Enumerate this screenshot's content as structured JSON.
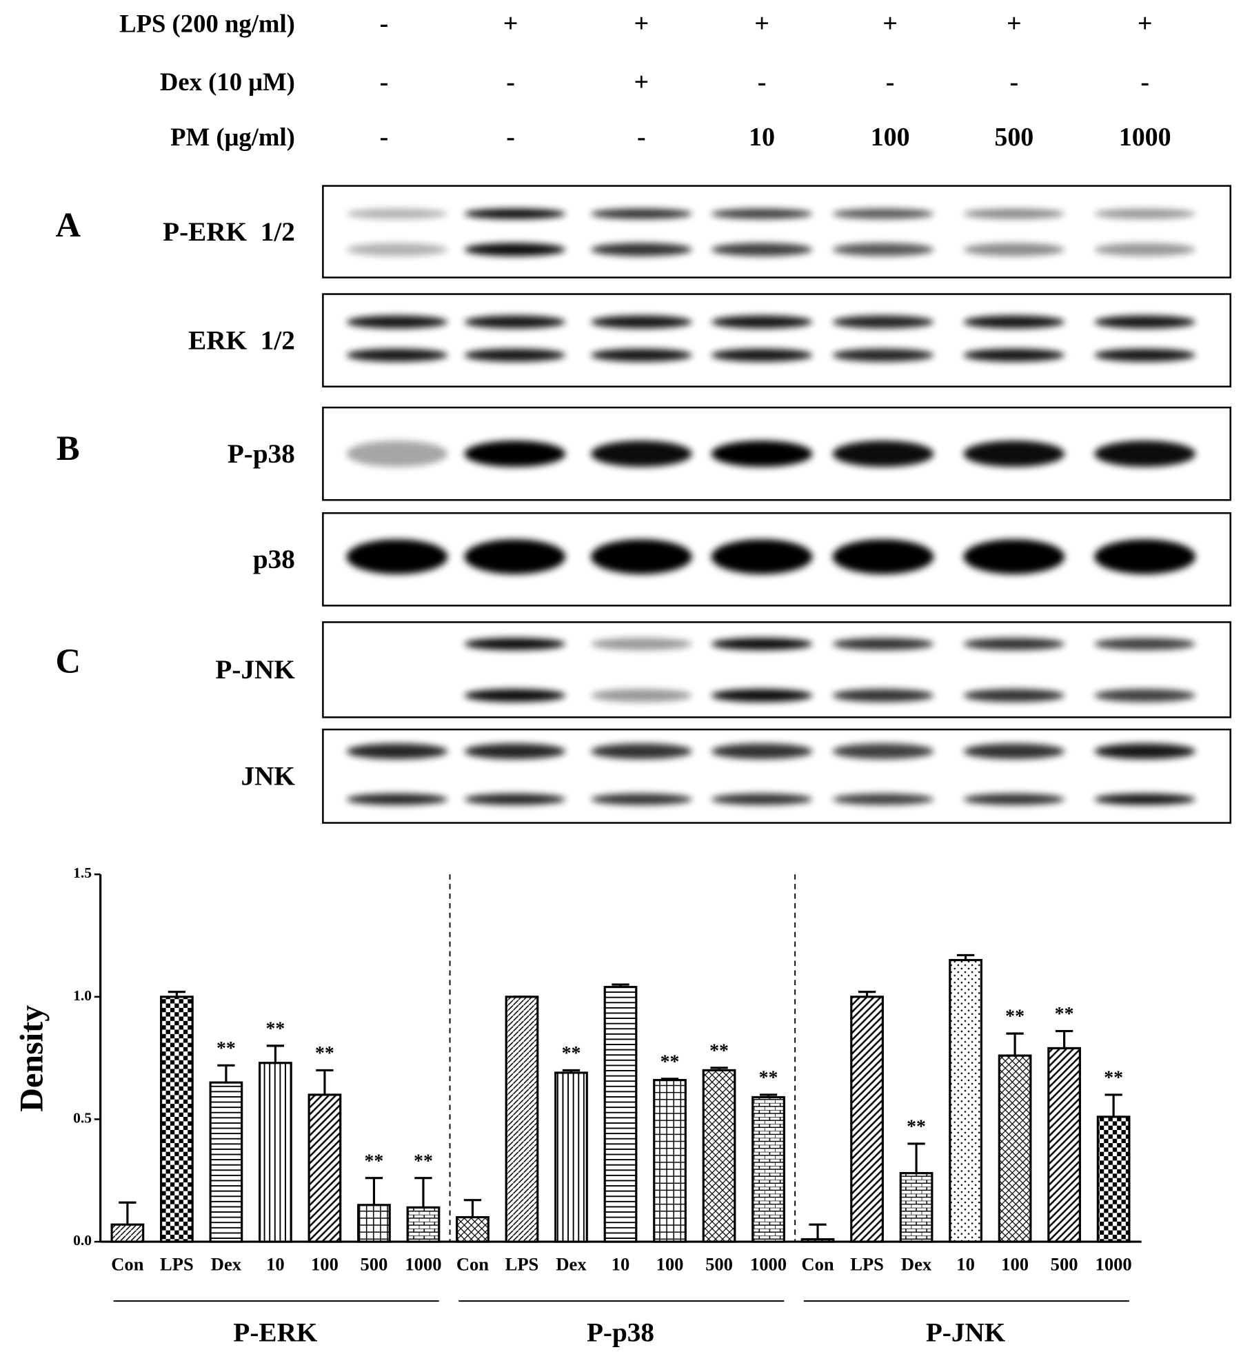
{
  "treatments": {
    "rows": [
      {
        "label": "LPS (200 ng/ml)",
        "cells": [
          "-",
          "+",
          "+",
          "+",
          "+",
          "+",
          "+"
        ]
      },
      {
        "label": "Dex (10 μM)",
        "cells": [
          "-",
          "-",
          "+",
          "-",
          "-",
          "-",
          "-"
        ]
      },
      {
        "label": "PM (μg/ml)",
        "cells": [
          "-",
          "-",
          "-",
          "10",
          "100",
          "500",
          "1000"
        ]
      }
    ]
  },
  "blots": [
    {
      "panel": "A",
      "label": "P-ERK  1/2"
    },
    {
      "label": "ERK  1/2"
    },
    {
      "panel": "B",
      "label": "P-p38"
    },
    {
      "label": "p38"
    },
    {
      "panel": "C",
      "label": "P-JNK"
    },
    {
      "label": "JNK"
    }
  ],
  "chart_data": {
    "type": "bar",
    "y_label": "Density",
    "ylim": [
      0,
      1.5
    ],
    "yticks": [
      {
        "value": 0,
        "label": "0.0"
      },
      {
        "value": 0.5,
        "label": "0.5"
      },
      {
        "value": 1,
        "label": "1.0"
      },
      {
        "value": 1.5,
        "label": "1.5"
      }
    ],
    "color": "#000000",
    "groups": [
      {
        "name": "P-ERK",
        "categories": [
          "Con",
          "LPS",
          "Dex",
          "10",
          "100",
          "500",
          "1000"
        ],
        "values": [
          0.07,
          1.0,
          0.65,
          0.73,
          0.6,
          0.15,
          0.14
        ],
        "errors": [
          0.09,
          0.02,
          0.07,
          0.07,
          0.1,
          0.11,
          0.12
        ],
        "significance": [
          null,
          null,
          "**",
          "**",
          "**",
          "**",
          "**"
        ]
      },
      {
        "name": "P-p38",
        "categories": [
          "Con",
          "LPS",
          "Dex",
          "10",
          "100",
          "500",
          "1000"
        ],
        "values": [
          0.1,
          1.0,
          0.69,
          1.04,
          0.66,
          0.7,
          0.59
        ],
        "errors": [
          0.07,
          0.0,
          0.01,
          0.01,
          0.005,
          0.01,
          0.01
        ],
        "significance": [
          null,
          null,
          "**",
          null,
          "**",
          "**",
          "**"
        ]
      },
      {
        "name": "P-JNK",
        "categories": [
          "Con",
          "LPS",
          "Dex",
          "10",
          "100",
          "500",
          "1000"
        ],
        "values": [
          0.01,
          1.0,
          0.28,
          1.15,
          0.76,
          0.79,
          0.51
        ],
        "errors": [
          0.06,
          0.02,
          0.12,
          0.02,
          0.09,
          0.07,
          0.09
        ],
        "significance": [
          null,
          null,
          "**",
          null,
          "**",
          "**",
          "**"
        ]
      }
    ]
  }
}
